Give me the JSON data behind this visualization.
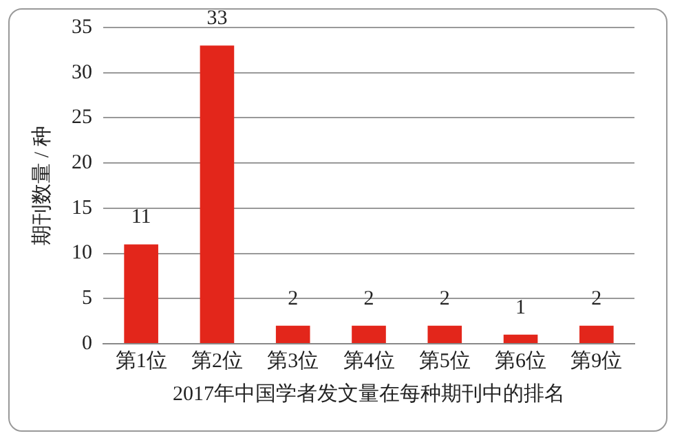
{
  "chart_data": {
    "type": "bar",
    "xlabel": "2017年中国学者发文量在每种期刊中的排名",
    "ylabel": "期刊数量 / 种",
    "categories": [
      "第1位",
      "第2位",
      "第3位",
      "第4位",
      "第5位",
      "第6位",
      "第9位"
    ],
    "values": [
      11,
      33,
      2,
      2,
      2,
      1,
      2
    ],
    "color": "#e3261b",
    "ylim": [
      0,
      35
    ],
    "yticks": [
      0,
      5,
      10,
      15,
      20,
      25,
      30,
      35
    ],
    "grid": "y",
    "data_labels": true,
    "legend": false
  }
}
